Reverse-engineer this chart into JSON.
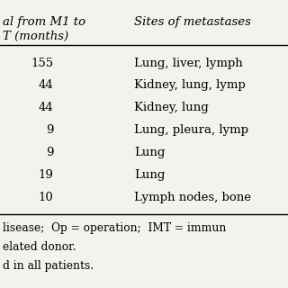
{
  "header1": "al from M1 to",
  "header2": "T (months)",
  "header3": "Sites of metastases",
  "col1": [
    "155",
    "44",
    "44",
    "9",
    "9",
    "19",
    "10"
  ],
  "col2": [
    "Lung, liver, lymph",
    "Kidney, lung, lymp",
    "Kidney, lung",
    "Lung, pleura, lymp",
    "Lung",
    "Lung",
    "Lymph nodes, bone"
  ],
  "footer_lines": [
    "lisease;  Op = operation;  IMT = immun",
    "elated donor.",
    "d in all patients."
  ],
  "bg_color": "#f2f2ee",
  "font_size": 9.5,
  "footer_font_size": 8.8
}
